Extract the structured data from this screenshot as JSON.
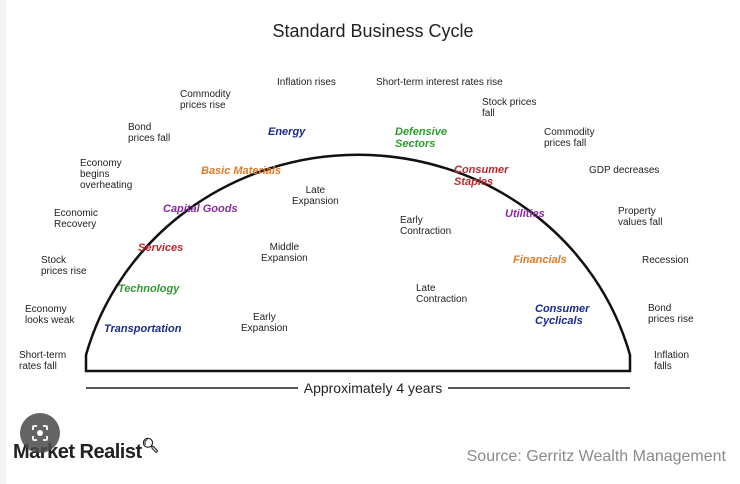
{
  "title": "Standard Business Cycle",
  "duration_label": "Approximately 4 years",
  "left_events": [
    "Short-term\nrates fall",
    "Economy\nlooks weak",
    "Stock\nprices rise",
    "Economic\nRecovery",
    "Economy\nbegins\noverheating",
    "Bond\nprices fall",
    "Commodity\nprices rise",
    "Inflation rises"
  ],
  "right_events": [
    "Short-term interest rates rise",
    "Stock prices\nfall",
    "Commodity\nprices fall",
    "GDP decreases",
    "Property\nvalues fall",
    "Recession",
    "Bond\nprices rise",
    "Inflation\nfalls"
  ],
  "phases": [
    "Early\nExpansion",
    "Middle\nExpansion",
    "Late\nExpansion",
    "Early\nContraction",
    "Late\nContraction"
  ],
  "sectors": [
    {
      "label": "Transportation",
      "color": "#1a2a8c"
    },
    {
      "label": "Technology",
      "color": "#2e9b2e"
    },
    {
      "label": "Services",
      "color": "#c0282d"
    },
    {
      "label": "Capital Goods",
      "color": "#8a2ca0"
    },
    {
      "label": "Basic Materials",
      "color": "#e07b2a"
    },
    {
      "label": "Energy",
      "color": "#1a2a8c"
    },
    {
      "label": "Defensive\nSectors",
      "color": "#2e9b2e"
    },
    {
      "label": "Consumer\nStaples",
      "color": "#c0282d"
    },
    {
      "label": "Utilities",
      "color": "#8a2ca0"
    },
    {
      "label": "Financials",
      "color": "#e07b2a"
    },
    {
      "label": "Consumer\nCyclicals",
      "color": "#1a2a8c"
    }
  ],
  "brand": "Market Realist",
  "brand_icon": "magnifier-chart-icon",
  "source": "Source: Gerritz Wealth Management",
  "overlay_icon": "google-lens-icon"
}
